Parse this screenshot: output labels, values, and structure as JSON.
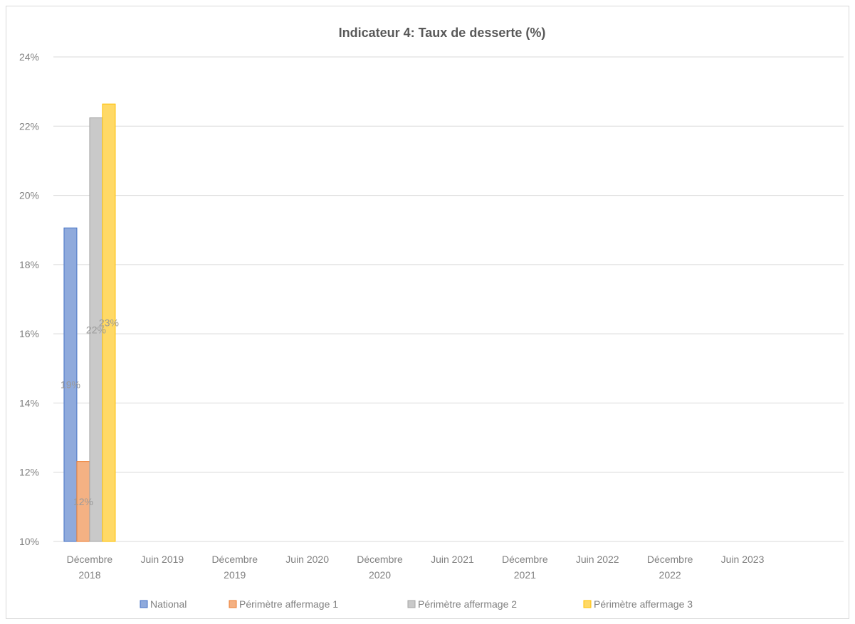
{
  "chart_data": {
    "type": "bar",
    "title": "Indicateur 4: Taux de desserte (%)",
    "xlabel": "",
    "ylabel": "",
    "ylim": [
      0.1,
      0.24
    ],
    "y_ticks": [
      "10%",
      "12%",
      "14%",
      "16%",
      "18%",
      "20%",
      "22%",
      "24%"
    ],
    "y_tick_values": [
      0.1,
      0.12,
      0.14,
      0.16,
      0.18,
      0.2,
      0.22,
      0.24
    ],
    "grid": true,
    "legend_position": "bottom",
    "categories": [
      [
        "Décembre",
        "2018"
      ],
      [
        "Juin 2019"
      ],
      [
        "Décembre",
        "2019"
      ],
      [
        "Juin 2020"
      ],
      [
        "Décembre",
        "2020"
      ],
      [
        "Juin 2021"
      ],
      [
        "Décembre",
        "2021"
      ],
      [
        "Juin 2022"
      ],
      [
        "Décembre",
        "2022"
      ],
      [
        "Juin 2023"
      ]
    ],
    "series": [
      {
        "name": "National",
        "color": "#8faadc",
        "stroke": "#4472c4",
        "values": [
          0.1906,
          null,
          null,
          null,
          null,
          null,
          null,
          null,
          null,
          null
        ],
        "labels": [
          "19%"
        ]
      },
      {
        "name": "Périmètre affermage 1",
        "color": "#f4b183",
        "stroke": "#ed7d31",
        "values": [
          0.1231,
          null,
          null,
          null,
          null,
          null,
          null,
          null,
          null,
          null
        ],
        "labels": [
          "12%"
        ]
      },
      {
        "name": "Périmètre affermage 2",
        "color": "#c9c9c9",
        "stroke": "#a5a5a5",
        "values": [
          0.2224,
          null,
          null,
          null,
          null,
          null,
          null,
          null,
          null,
          null
        ],
        "labels": [
          "22%"
        ]
      },
      {
        "name": "Périmètre affermage 3",
        "color": "#ffd966",
        "stroke": "#ffc000",
        "values": [
          0.2264,
          null,
          null,
          null,
          null,
          null,
          null,
          null,
          null,
          null
        ],
        "labels": [
          "23%"
        ]
      }
    ]
  }
}
